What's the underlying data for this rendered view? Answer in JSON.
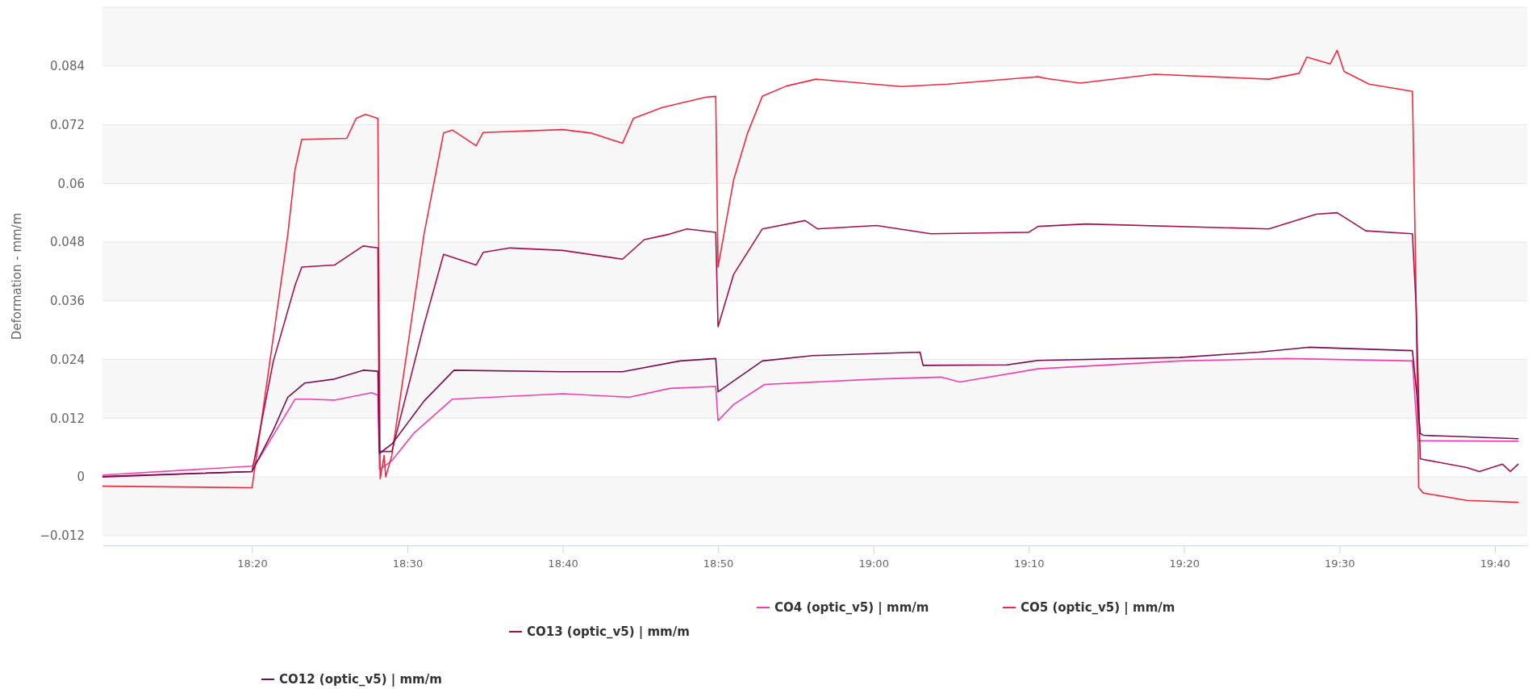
{
  "chart_data": {
    "type": "line",
    "ylabel": "Deformation - mm/m",
    "xlim": [
      18.1728,
      19.7014
    ],
    "xticks": [
      {
        "value": 18.3333,
        "label": "18:20"
      },
      {
        "value": 18.5,
        "label": "18:30"
      },
      {
        "value": 18.6667,
        "label": "18:40"
      },
      {
        "value": 18.8333,
        "label": "18:50"
      },
      {
        "value": 19,
        "label": "19:00"
      },
      {
        "value": 19.1667,
        "label": "19:10"
      },
      {
        "value": 19.3333,
        "label": "19:20"
      },
      {
        "value": 19.5,
        "label": "19:30"
      },
      {
        "value": 19.6667,
        "label": "19:40"
      }
    ],
    "ylim": [
      -0.014,
      0.096
    ],
    "yticks": [
      {
        "value": -0.012,
        "label": "−0.012"
      },
      0,
      0.012,
      0.024,
      0.036,
      0.048,
      0.06,
      0.072,
      0.084
    ],
    "grid": "y",
    "legend": "bottom",
    "marker": "none",
    "line_style": "solid",
    "series": [
      {
        "name": "CO4 (optic_v5) | mm/m",
        "color": "#f03fae",
        "x": [
          18.1733,
          18.3333,
          18.3408,
          18.3795,
          18.3917,
          18.4217,
          18.4617,
          18.4683,
          18.47,
          18.4833,
          18.5067,
          18.5483,
          18.6667,
          18.7383,
          18.7817,
          18.8308,
          18.8333,
          18.85,
          18.8833,
          19.0033,
          19.0733,
          19.0925,
          19.1767,
          19.3283,
          19.4433,
          19.5783,
          19.5842,
          19.6917
        ],
        "values": [
          0.0004,
          0.0022,
          0.0037,
          0.0159,
          0.0159,
          0.0157,
          0.0172,
          0.0167,
          0.0015,
          0.0033,
          0.0089,
          0.0159,
          0.017,
          0.0163,
          0.0181,
          0.0185,
          0.0115,
          0.0148,
          0.0189,
          0.02,
          0.0204,
          0.0194,
          0.0221,
          0.0237,
          0.0242,
          0.0237,
          0.0074,
          0.0073
        ]
      },
      {
        "name": "CO5 (optic_v5) | mm/m",
        "color": "#f2293f",
        "x": [
          18.1733,
          18.3333,
          18.3717,
          18.3795,
          18.3867,
          18.435,
          18.445,
          18.455,
          18.4683,
          18.4708,
          18.475,
          18.4767,
          18.4833,
          18.5178,
          18.5388,
          18.5483,
          18.5737,
          18.5813,
          18.6667,
          18.6967,
          18.7308,
          18.7425,
          18.7733,
          18.82,
          18.8308,
          18.8333,
          18.85,
          18.865,
          18.8808,
          18.9067,
          18.9383,
          19.03,
          19.08,
          19.1767,
          19.1867,
          19.2217,
          19.3017,
          19.4242,
          19.4567,
          19.465,
          19.49,
          19.4975,
          19.505,
          19.5317,
          19.5783,
          19.5815,
          19.585,
          19.59,
          19.6367,
          19.6917
        ],
        "values": [
          -0.0019,
          -0.0022,
          0.0496,
          0.0629,
          0.069,
          0.0692,
          0.0733,
          0.0741,
          0.0733,
          -0.0004,
          0.0044,
          0,
          0.0044,
          0.0496,
          0.0703,
          0.0709,
          0.0677,
          0.0704,
          0.071,
          0.0703,
          0.0682,
          0.0733,
          0.0755,
          0.0776,
          0.0778,
          0.0429,
          0.0607,
          0.0703,
          0.0778,
          0.0799,
          0.0813,
          0.0798,
          0.0803,
          0.0818,
          0.0814,
          0.0805,
          0.0823,
          0.0813,
          0.0825,
          0.0858,
          0.0844,
          0.0872,
          0.0829,
          0.0803,
          0.0788,
          0.0459,
          -0.0022,
          -0.0033,
          -0.0048,
          -0.0052
        ]
      },
      {
        "name": "CO13 (optic_v5) | mm/m",
        "color": "#a50f4c",
        "x": [
          18.1733,
          18.3333,
          18.3562,
          18.3795,
          18.3867,
          18.4217,
          18.4525,
          18.4683,
          18.47,
          18.4833,
          18.5178,
          18.5388,
          18.5737,
          18.5813,
          18.61,
          18.6667,
          18.7308,
          18.7542,
          18.7808,
          18.8,
          18.8308,
          18.8333,
          18.85,
          18.8808,
          18.9267,
          18.94,
          19.0033,
          19.0617,
          19.1667,
          19.1767,
          19.2283,
          19.4242,
          19.475,
          19.4975,
          19.5283,
          19.5783,
          19.5823,
          19.5867,
          19.6367,
          19.65,
          19.675,
          19.6833,
          19.6917
        ],
        "values": [
          0.0001,
          0.0011,
          0.0237,
          0.0392,
          0.0429,
          0.0433,
          0.0472,
          0.0468,
          0.0052,
          0.0052,
          0.0311,
          0.0455,
          0.0433,
          0.0459,
          0.0468,
          0.0463,
          0.0445,
          0.0485,
          0.0496,
          0.0507,
          0.05,
          0.0307,
          0.0414,
          0.0507,
          0.0524,
          0.0507,
          0.0514,
          0.0497,
          0.05,
          0.0512,
          0.0517,
          0.0507,
          0.0537,
          0.054,
          0.0503,
          0.0497,
          0.0348,
          0.0037,
          0.0019,
          0.0011,
          0.0026,
          0.0011,
          0.0026
        ]
      },
      {
        "name": "CO12 (optic_v5) | mm/m",
        "color": "#7b0b4f",
        "x": [
          18.1733,
          18.3333,
          18.3562,
          18.3717,
          18.39,
          18.4217,
          18.4525,
          18.4683,
          18.47,
          18.4833,
          18.5178,
          18.55,
          18.6667,
          18.7308,
          18.7925,
          18.8308,
          18.8333,
          18.8808,
          18.935,
          19.05,
          19.0533,
          19.1433,
          19.1767,
          19.3283,
          19.4133,
          19.4667,
          19.5783,
          19.5833,
          19.5867,
          19.59,
          19.6917
        ],
        "values": [
          0,
          0.0011,
          0.0096,
          0.0163,
          0.0192,
          0.02,
          0.0218,
          0.0216,
          0.0048,
          0.0067,
          0.0155,
          0.0218,
          0.0215,
          0.0215,
          0.0237,
          0.0242,
          0.0174,
          0.0237,
          0.0248,
          0.0255,
          0.0228,
          0.0229,
          0.0238,
          0.0244,
          0.0255,
          0.0265,
          0.0258,
          0.0163,
          0.0089,
          0.0085,
          0.0078
        ]
      }
    ]
  }
}
